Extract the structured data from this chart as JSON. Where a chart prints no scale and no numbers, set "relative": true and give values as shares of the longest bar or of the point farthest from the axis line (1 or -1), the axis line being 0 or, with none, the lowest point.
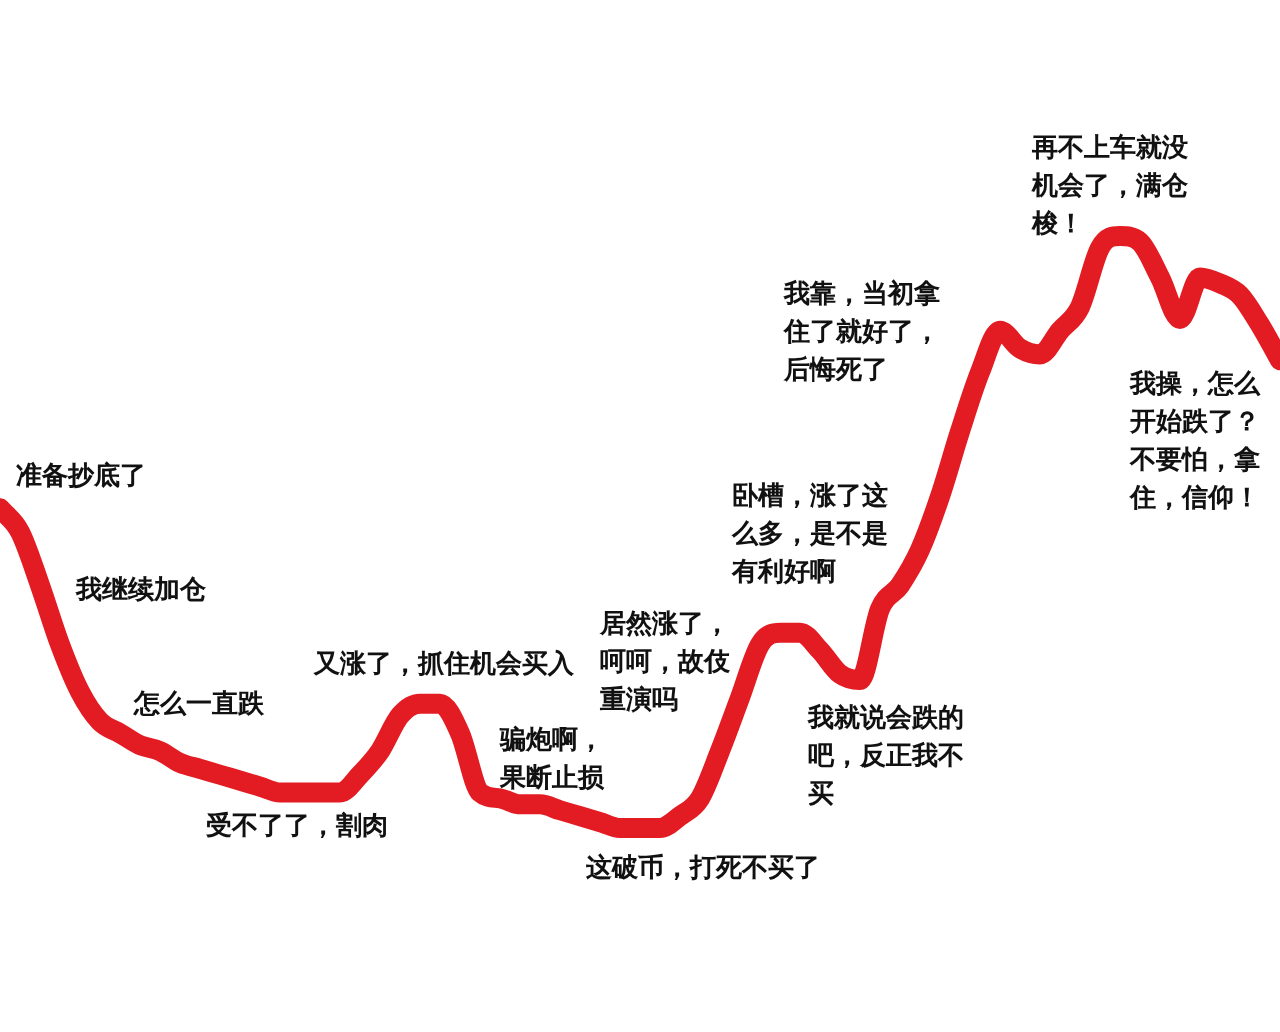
{
  "chart_data": {
    "type": "line",
    "relative": true,
    "categories": [
      null,
      null,
      null,
      null,
      null,
      null,
      null,
      null,
      null,
      null,
      null,
      null,
      null,
      null,
      null,
      null,
      null,
      null,
      null,
      null,
      null,
      null,
      null,
      null,
      null,
      null,
      null,
      null,
      null,
      null,
      null,
      null,
      null,
      null,
      null,
      null,
      null,
      null,
      null,
      null,
      null,
      null,
      null,
      null,
      null,
      null,
      null,
      null,
      null,
      null,
      null,
      null,
      null,
      null,
      null,
      null,
      null,
      null,
      null,
      null,
      null,
      null,
      null,
      null,
      null
    ],
    "series": [
      {
        "color": "#e31b23",
        "values": [
          0.54,
          0.5,
          0.41,
          0.31,
          0.23,
          0.18,
          0.16,
          0.14,
          0.13,
          0.11,
          0.1,
          0.09,
          0.08,
          0.07,
          0.06,
          0.06,
          0.06,
          0.06,
          0.09,
          0.13,
          0.19,
          0.21,
          0.21,
          0.16,
          0.06,
          0.05,
          0.04,
          0.04,
          0.03,
          0.02,
          0.01,
          0,
          0,
          0,
          0.02,
          0.05,
          0.13,
          0.22,
          0.31,
          0.33,
          0.33,
          0.3,
          0.26,
          0.25,
          0.37,
          0.41,
          0.47,
          0.56,
          0.67,
          0.77,
          0.84,
          0.81,
          0.8,
          0.84,
          0.88,
          0.98,
          1,
          0.99,
          0.93,
          0.86,
          0.93,
          0.92,
          0.9,
          0.85,
          0.79
        ]
      }
    ],
    "annotations": [
      "准备抄底了",
      "我继续加仓",
      "怎么一直跌",
      "受不了了，割肉",
      "又涨了，抓住机会买入",
      "骗炮啊，果断止损",
      "这破币，打死不买了",
      "居然涨了，呵呵，故伎重演吗",
      "我就说会跌的吧，反正我不买",
      "卧槽，涨了这么多，是不是有利好啊",
      "我靠，当初拿住了就好了，后悔死了",
      "再不上车就没机会了，满仓梭！",
      "我操，怎么开始跌了？不要怕，拿住，信仰！"
    ]
  }
}
